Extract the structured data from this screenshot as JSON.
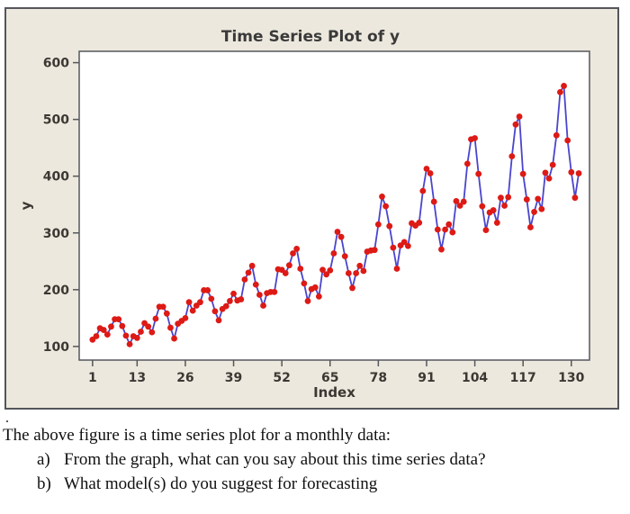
{
  "chart_data": {
    "type": "line",
    "title": "Time Series Plot of y",
    "xlabel": "Index",
    "ylabel": "y",
    "x_start": 1,
    "x_ticks": [
      1,
      13,
      26,
      39,
      52,
      65,
      78,
      91,
      104,
      117,
      130
    ],
    "y_ticks": [
      100,
      200,
      300,
      400,
      500,
      600
    ],
    "xlim": [
      -2.6,
      134.9
    ],
    "ylim": [
      76,
      620
    ],
    "grid": false,
    "legend": false,
    "values": [
      112,
      118,
      132,
      129,
      121,
      135,
      148,
      148,
      136,
      119,
      104,
      118,
      115,
      126,
      141,
      135,
      125,
      149,
      170,
      170,
      158,
      133,
      114,
      140,
      145,
      150,
      178,
      163,
      172,
      178,
      199,
      199,
      184,
      162,
      146,
      166,
      171,
      180,
      193,
      181,
      183,
      218,
      230,
      242,
      209,
      191,
      172,
      194,
      196,
      196,
      236,
      235,
      229,
      243,
      264,
      272,
      237,
      211,
      180,
      201,
      204,
      188,
      235,
      227,
      234,
      264,
      302,
      293,
      259,
      229,
      203,
      229,
      242,
      233,
      267,
      269,
      270,
      315,
      364,
      347,
      312,
      274,
      237,
      278,
      284,
      277,
      317,
      313,
      318,
      374,
      413,
      405,
      355,
      306,
      271,
      306,
      315,
      301,
      356,
      348,
      355,
      422,
      465,
      467,
      404,
      347,
      305,
      336,
      340,
      318,
      362,
      348,
      363,
      435,
      491,
      505,
      404,
      359,
      310,
      337,
      360,
      342,
      406,
      396,
      420,
      472,
      548,
      559,
      463,
      407,
      362,
      405
    ],
    "line_color": "#4a45cc",
    "marker_color": "#dd1a15",
    "figure_bg": "#ece8dd",
    "plot_bg": "#ffffff",
    "axis_color": "#55575c",
    "text_color": "#3b3733"
  },
  "caption": {
    "dot": ".",
    "intro": "The above figure is a time series plot for a monthly data:",
    "items": [
      {
        "label": "a)",
        "text": "From the graph, what can you say about this time series data?"
      },
      {
        "label": "b)",
        "text": "What model(s) do you suggest for forecasting"
      }
    ]
  }
}
